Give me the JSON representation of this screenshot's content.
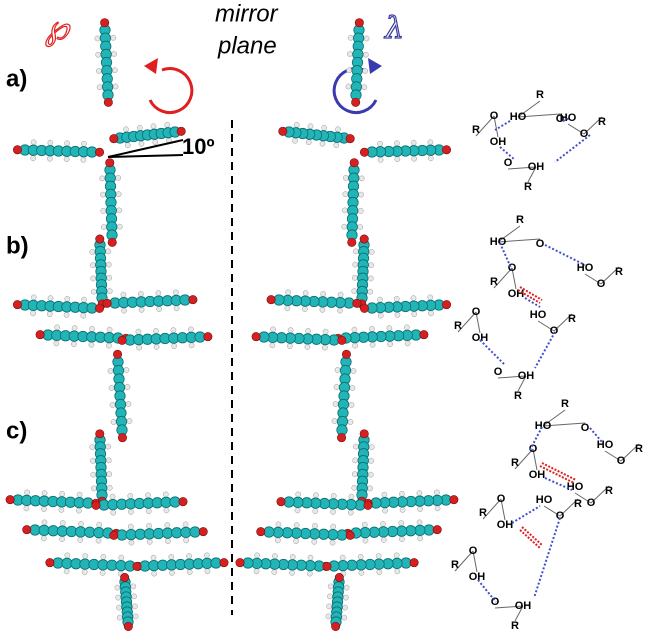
{
  "header": {
    "left_symbol": "℘",
    "mirror": [
      "mirror",
      "plane"
    ],
    "right_symbol": "λ"
  },
  "panels": [
    {
      "label": "a)"
    },
    {
      "label": "b)"
    },
    {
      "label": "c)"
    }
  ],
  "angle_label": "10º",
  "schemes": [
    [
      [
        "R",
        "HO",
        "O"
      ],
      [
        "R",
        "O",
        "OH"
      ],
      [
        "HO",
        "O",
        "R"
      ],
      [
        "O",
        "OH",
        "R"
      ]
    ],
    [
      [
        "R",
        "HO",
        "O"
      ],
      [
        "R",
        "O",
        "OH"
      ],
      [
        "HO",
        "O",
        "R"
      ],
      [
        "R",
        "O",
        "OH"
      ],
      [
        "HO",
        "O",
        "R"
      ],
      [
        "O",
        "OH",
        "R"
      ]
    ],
    [
      [
        "R",
        "HO",
        "O"
      ],
      [
        "HO",
        "O",
        "R"
      ],
      [
        "R",
        "O",
        "OH"
      ],
      [
        "HO",
        "O",
        "R"
      ],
      [
        "R",
        "O",
        "OH"
      ],
      [
        "HO",
        "O",
        "R"
      ],
      [
        "R",
        "O",
        "OH"
      ],
      [
        "O",
        "OH",
        "R"
      ]
    ]
  ]
}
